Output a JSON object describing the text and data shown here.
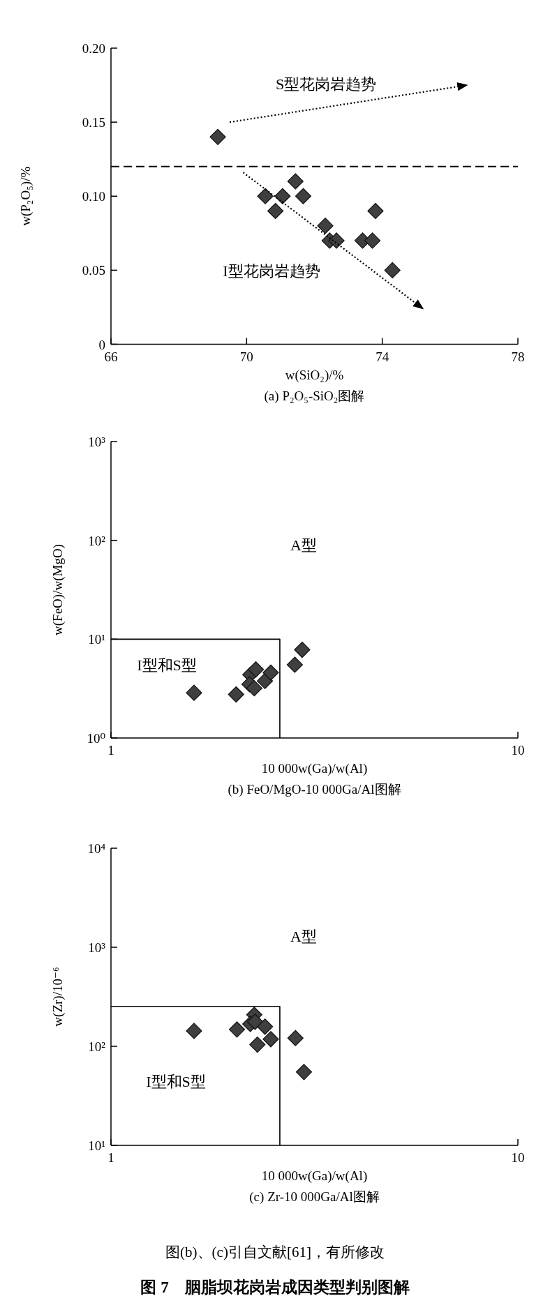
{
  "chart_data": [
    {
      "type": "scatter",
      "title": "(a)  P₂O₅-SiO₂图解",
      "xlabel": "w(SiO₂)/%",
      "ylabel": "w(P₂O₅)/%",
      "xlim": [
        66,
        78
      ],
      "xticks": [
        66,
        70,
        74,
        78
      ],
      "ylim": [
        0,
        0.2
      ],
      "yticks": [
        0,
        0.05,
        {
          "value": 0.1,
          "label": "0.10"
        },
        0.15,
        {
          "value": 0.2,
          "label": "0.20"
        }
      ],
      "marker": "diamond",
      "series": [
        {
          "color": "#3f3f3f",
          "x": [
            69.15,
            70.55,
            70.85,
            71.06,
            71.44,
            71.67,
            72.32,
            72.45,
            72.65,
            73.42,
            73.71,
            73.8,
            74.3
          ],
          "values": [
            0.14,
            0.1,
            0.09,
            0.1,
            0.11,
            0.1,
            0.08,
            0.07,
            0.07,
            0.07,
            0.07,
            0.09,
            0.05
          ]
        },
        {
          "type": "line",
          "color": "#000000",
          "line_style": "dotted",
          "marker": "none",
          "x": [
            69.5,
            76.5
          ],
          "values": [
            0.15,
            0.175
          ]
        },
        {
          "type": "line",
          "color": "#000000",
          "line_style": "dotted",
          "marker": "none",
          "x": [
            69.9,
            75.2
          ],
          "values": [
            0.116,
            0.024
          ]
        }
      ],
      "ref_lines": [
        {
          "axis": "y",
          "value": 0.12,
          "line_style": "dashed",
          "color": "#000000"
        }
      ],
      "annotations": [
        "S型花岗岩趋势",
        "I型花岗岩趋势"
      ]
    },
    {
      "type": "scatter",
      "title": "(b)  FeO/MgO-10 000Ga/Al图解",
      "xlabel": "10 000w(Ga)/w(Al)",
      "ylabel": "w(FeO)/w(MgO)",
      "log": "xy",
      "xlim": [
        1,
        10
      ],
      "xticks": [
        1,
        10
      ],
      "ylim": [
        1,
        1000
      ],
      "yticks": [
        {
          "value": 1,
          "label": "10⁰"
        },
        {
          "value": 10,
          "label": "10¹"
        },
        {
          "value": 100,
          "label": "10²"
        },
        {
          "value": 1000,
          "label": "10³"
        }
      ],
      "marker": "diamond",
      "series": [
        {
          "color": "#3f3f3f",
          "x": [
            1.6,
            2.03,
            2.2,
            2.27,
            2.19,
            2.25,
            2.39,
            2.47,
            2.83,
            2.95
          ],
          "values": [
            2.87,
            2.76,
            4.37,
            4.94,
            3.5,
            3.19,
            3.78,
            4.59,
            5.51,
            7.81
          ]
        },
        {
          "type": "line",
          "color": "#000000",
          "line_style": "solid",
          "marker": "none",
          "x": [
            1,
            2.6,
            2.6
          ],
          "values": [
            10,
            10,
            1
          ]
        }
      ],
      "annotations": [
        "A型",
        "I型和S型"
      ]
    },
    {
      "type": "scatter",
      "title": "(c)  Zr-10 000Ga/Al图解",
      "xlabel": "10 000w(Ga)/w(Al)",
      "ylabel": "w(Zr)/10⁻⁶",
      "log": "xy",
      "xlim": [
        1,
        10
      ],
      "xticks": [
        1,
        10
      ],
      "ylim": [
        10,
        10000
      ],
      "yticks": [
        {
          "value": 10,
          "label": "10¹"
        },
        {
          "value": 100,
          "label": "10²"
        },
        {
          "value": 1000,
          "label": "10³"
        },
        {
          "value": 10000,
          "label": "10⁴"
        }
      ],
      "marker": "diamond",
      "series": [
        {
          "color": "#3f3f3f",
          "x": [
            1.6,
            2.04,
            2.25,
            2.2,
            2.26,
            2.39,
            2.29,
            2.47,
            2.84,
            2.98
          ],
          "values": [
            143,
            148,
            208,
            168,
            177,
            158,
            104,
            118,
            121,
            55
          ]
        },
        {
          "type": "line",
          "color": "#000000",
          "line_style": "solid",
          "marker": "none",
          "x": [
            1,
            2.6,
            2.6
          ],
          "values": [
            253,
            253,
            10
          ]
        }
      ],
      "annotations": [
        "A型",
        "I型和S型",
        "图(b)、(c)引自文献[61]，有所修改",
        "图 7　胭脂坝花岗岩成因类型判别图解"
      ]
    }
  ]
}
